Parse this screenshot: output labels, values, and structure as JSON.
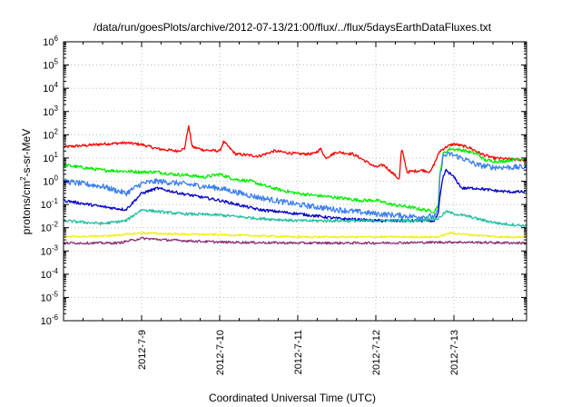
{
  "chart_data": {
    "type": "line",
    "title": "/data/run/goesPlots/archive/2012-07-13/21:00/flux/../flux/5daysEarthDataFluxes.txt",
    "xlabel": "Coordinated Universal Time (UTC)",
    "ylabel_parts": {
      "pre": "protons/cm",
      "sup": "2",
      "post": "-s-sr-MeV"
    },
    "yscale": "log",
    "ylim": [
      1e-06,
      1000000.0
    ],
    "xlim": [
      0,
      5.93
    ],
    "y_ticks": [
      {
        "value": 1e-06,
        "base": "10",
        "exp": "-6"
      },
      {
        "value": 1e-05,
        "base": "10",
        "exp": "-5"
      },
      {
        "value": 0.0001,
        "base": "10",
        "exp": "-4"
      },
      {
        "value": 0.001,
        "base": "10",
        "exp": "-3"
      },
      {
        "value": 0.01,
        "base": "10",
        "exp": "-2"
      },
      {
        "value": 0.1,
        "base": "10",
        "exp": "-1"
      },
      {
        "value": 1,
        "base": "10",
        "exp": "0"
      },
      {
        "value": 10,
        "base": "10",
        "exp": "1"
      },
      {
        "value": 100,
        "base": "10",
        "exp": "2"
      },
      {
        "value": 1000,
        "base": "10",
        "exp": "3"
      },
      {
        "value": 10000,
        "base": "10",
        "exp": "4"
      },
      {
        "value": 100000,
        "base": "10",
        "exp": "5"
      },
      {
        "value": 1000000,
        "base": "10",
        "exp": "6"
      }
    ],
    "x_ticks": [
      {
        "value": 1,
        "label": "2012-7-9"
      },
      {
        "value": 2,
        "label": "2012-7-10"
      },
      {
        "value": 3,
        "label": "2012-7-11"
      },
      {
        "value": 4,
        "label": "2012-7-12"
      },
      {
        "value": 5,
        "label": "2012-7-13"
      }
    ],
    "grid": true,
    "legend": "none",
    "series": [
      {
        "color": "#ff0000",
        "noise": 0.06,
        "x": [
          0,
          0.3,
          0.5,
          0.8,
          1.0,
          1.2,
          1.45,
          1.55,
          1.6,
          1.65,
          1.8,
          2.0,
          2.05,
          2.2,
          2.5,
          2.7,
          2.8,
          3.0,
          3.2,
          3.3,
          3.35,
          3.5,
          3.7,
          3.8,
          4.0,
          4.1,
          4.2,
          4.3,
          4.33,
          4.36,
          4.4,
          4.6,
          4.7,
          4.82,
          4.9,
          5.0,
          5.2,
          5.35,
          5.5,
          5.7,
          5.93
        ],
        "y": [
          30,
          35,
          40,
          45,
          38,
          25,
          20,
          25,
          250,
          30,
          22,
          20,
          50,
          15,
          12,
          20,
          18,
          15,
          15,
          25,
          10,
          18,
          15,
          10,
          4,
          5,
          2.5,
          1.2,
          25,
          10,
          2.5,
          3,
          2.5,
          20,
          30,
          40,
          28,
          15,
          10,
          9,
          8
        ]
      },
      {
        "color": "#00ee00",
        "noise": 0.07,
        "x": [
          0,
          0.5,
          1.0,
          1.2,
          1.4,
          1.6,
          1.8,
          2.0,
          2.2,
          2.4,
          2.6,
          2.8,
          3.0,
          3.2,
          3.5,
          3.8,
          4.0,
          4.2,
          4.4,
          4.6,
          4.75,
          4.8,
          4.82,
          4.86,
          4.95,
          5.1,
          5.3,
          5.4,
          5.6,
          5.8,
          5.93
        ],
        "y": [
          5,
          3,
          2.5,
          2.5,
          2,
          1.8,
          1.5,
          2,
          1.2,
          1.0,
          0.6,
          0.4,
          0.3,
          0.25,
          0.2,
          0.15,
          0.15,
          0.1,
          0.08,
          0.06,
          0.05,
          0.1,
          2,
          15,
          25,
          22,
          15,
          8,
          7,
          9,
          9
        ]
      },
      {
        "color": "#3b7ff0",
        "noise": 0.12,
        "x": [
          0,
          0.5,
          0.8,
          1.0,
          1.2,
          1.5,
          2.0,
          2.5,
          3.0,
          3.5,
          4.0,
          4.5,
          4.75,
          4.8,
          4.82,
          4.86,
          4.95,
          5.1,
          5.3,
          5.5,
          5.7,
          5.93
        ],
        "y": [
          1,
          0.6,
          0.3,
          0.8,
          1.0,
          0.8,
          0.5,
          0.2,
          0.1,
          0.06,
          0.04,
          0.03,
          0.03,
          0.05,
          1.5,
          12,
          15,
          10,
          5,
          4,
          4,
          4
        ]
      },
      {
        "color": "#0000cc",
        "noise": 0.06,
        "x": [
          0,
          0.5,
          0.8,
          1.0,
          1.2,
          1.5,
          2.0,
          2.5,
          3.0,
          3.5,
          4.0,
          4.5,
          4.75,
          4.8,
          4.82,
          4.86,
          4.9,
          5.0,
          5.1,
          5.3,
          5.5,
          5.7,
          5.93
        ],
        "y": [
          0.15,
          0.08,
          0.06,
          0.3,
          0.5,
          0.3,
          0.15,
          0.06,
          0.04,
          0.025,
          0.02,
          0.02,
          0.02,
          0.04,
          0.2,
          1.5,
          3,
          1.5,
          0.5,
          0.5,
          0.4,
          0.35,
          0.35
        ]
      },
      {
        "color": "#20c0a0",
        "noise": 0.06,
        "x": [
          0,
          0.5,
          0.8,
          1.0,
          1.2,
          1.5,
          2.0,
          2.5,
          3.0,
          3.5,
          4.0,
          4.5,
          4.8,
          4.9,
          5.0,
          5.2,
          5.4,
          5.6,
          5.93
        ],
        "y": [
          0.02,
          0.015,
          0.02,
          0.06,
          0.05,
          0.04,
          0.035,
          0.025,
          0.02,
          0.02,
          0.02,
          0.02,
          0.025,
          0.05,
          0.04,
          0.03,
          0.02,
          0.015,
          0.012
        ]
      },
      {
        "color": "#f0f000",
        "noise": 0.04,
        "x": [
          0,
          0.6,
          1.0,
          1.3,
          2.0,
          2.5,
          3.0,
          4.0,
          4.8,
          4.95,
          5.2,
          5.6,
          5.93
        ],
        "y": [
          0.004,
          0.0045,
          0.006,
          0.0055,
          0.005,
          0.0045,
          0.004,
          0.004,
          0.004,
          0.006,
          0.005,
          0.004,
          0.004
        ]
      },
      {
        "color": "#8b2e7a",
        "noise": 0.05,
        "x": [
          0,
          0.7,
          1.0,
          1.3,
          2.0,
          3.0,
          4.0,
          5.0,
          5.93
        ],
        "y": [
          0.0022,
          0.0022,
          0.0035,
          0.003,
          0.0024,
          0.0022,
          0.0022,
          0.0024,
          0.0022
        ]
      }
    ]
  }
}
